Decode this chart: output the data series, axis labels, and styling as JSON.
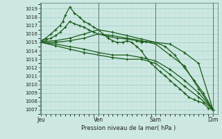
{
  "bg_color": "#cce8e0",
  "grid_color_major": "#99cccc",
  "grid_color_minor": "#bbdddd",
  "line_color": "#1a5c1a",
  "yticks": [
    1007,
    1008,
    1009,
    1010,
    1011,
    1012,
    1013,
    1014,
    1015,
    1016,
    1017,
    1018,
    1019
  ],
  "xtick_labels": [
    "Jeu",
    "Ven",
    "Sam",
    "Dim"
  ],
  "xtick_positions": [
    0,
    1,
    2,
    3
  ],
  "xlabel": "Pression niveau de la mer( hPa )",
  "ylim": [
    1006.5,
    1019.7
  ],
  "xlim": [
    -0.02,
    3.08
  ],
  "lines": [
    {
      "x": [
        0.0,
        0.08,
        0.17,
        0.25,
        0.33,
        0.38,
        0.42,
        0.5,
        0.58,
        0.67,
        0.75,
        0.83,
        0.92,
        1.0,
        1.08,
        1.17,
        1.25,
        1.33,
        1.42,
        1.5,
        1.58,
        1.67,
        1.75,
        1.83,
        1.92,
        2.0,
        2.08,
        2.17,
        2.25,
        2.33,
        2.42,
        2.5,
        2.58,
        2.67,
        2.75,
        2.83,
        2.92,
        3.0
      ],
      "y": [
        1015.2,
        1015.5,
        1016.0,
        1016.5,
        1017.0,
        1017.5,
        1018.2,
        1019.2,
        1018.5,
        1018.0,
        1017.5,
        1017.2,
        1016.8,
        1016.5,
        1016.0,
        1015.5,
        1015.2,
        1015.0,
        1015.0,
        1015.2,
        1015.0,
        1014.5,
        1014.0,
        1013.2,
        1012.5,
        1012.0,
        1011.5,
        1011.0,
        1010.5,
        1010.0,
        1009.5,
        1009.0,
        1008.5,
        1008.2,
        1008.0,
        1007.8,
        1007.2,
        1007.0
      ]
    },
    {
      "x": [
        0.0,
        0.08,
        0.17,
        0.25,
        0.33,
        0.42,
        0.5,
        0.58,
        0.67,
        0.75,
        0.83,
        0.92,
        1.0,
        1.17,
        1.33,
        1.5,
        1.67,
        1.75,
        1.83,
        2.0,
        2.17,
        2.33,
        2.5,
        2.67,
        2.83,
        3.0
      ],
      "y": [
        1015.2,
        1015.3,
        1015.5,
        1015.8,
        1016.2,
        1016.8,
        1017.5,
        1017.2,
        1017.0,
        1016.8,
        1016.5,
        1016.2,
        1016.0,
        1015.7,
        1015.5,
        1015.4,
        1015.2,
        1015.0,
        1015.1,
        1015.0,
        1014.5,
        1013.5,
        1012.0,
        1010.5,
        1009.0,
        1007.0
      ]
    },
    {
      "x": [
        0.0,
        0.25,
        0.5,
        0.75,
        1.0,
        1.25,
        1.5,
        1.75,
        2.0,
        2.25,
        2.5,
        2.75,
        3.0
      ],
      "y": [
        1015.1,
        1015.2,
        1015.5,
        1016.0,
        1016.5,
        1016.2,
        1015.8,
        1015.4,
        1015.0,
        1014.8,
        1013.8,
        1012.5,
        1007.0
      ]
    },
    {
      "x": [
        0.0,
        0.25,
        0.5,
        0.75,
        1.0,
        1.25,
        1.5,
        1.75,
        2.0,
        2.25,
        2.5,
        2.75,
        3.0
      ],
      "y": [
        1015.0,
        1015.0,
        1015.2,
        1015.5,
        1016.0,
        1015.8,
        1015.5,
        1015.2,
        1014.8,
        1013.5,
        1012.2,
        1009.5,
        1007.0
      ]
    },
    {
      "x": [
        0.0,
        0.25,
        0.5,
        0.75,
        1.0,
        1.25,
        1.5,
        1.75,
        2.0,
        2.25,
        2.5,
        2.75,
        3.0
      ],
      "y": [
        1015.0,
        1014.8,
        1014.5,
        1014.2,
        1013.8,
        1013.5,
        1013.5,
        1013.2,
        1012.8,
        1011.8,
        1010.5,
        1009.0,
        1007.0
      ]
    },
    {
      "x": [
        0.0,
        0.25,
        0.5,
        0.75,
        1.0,
        1.25,
        1.5,
        1.75,
        2.0,
        2.25,
        2.5,
        2.75,
        3.0
      ],
      "y": [
        1015.0,
        1014.6,
        1014.2,
        1013.8,
        1013.5,
        1013.2,
        1013.0,
        1013.0,
        1012.5,
        1011.2,
        1009.8,
        1008.5,
        1007.0
      ]
    }
  ]
}
